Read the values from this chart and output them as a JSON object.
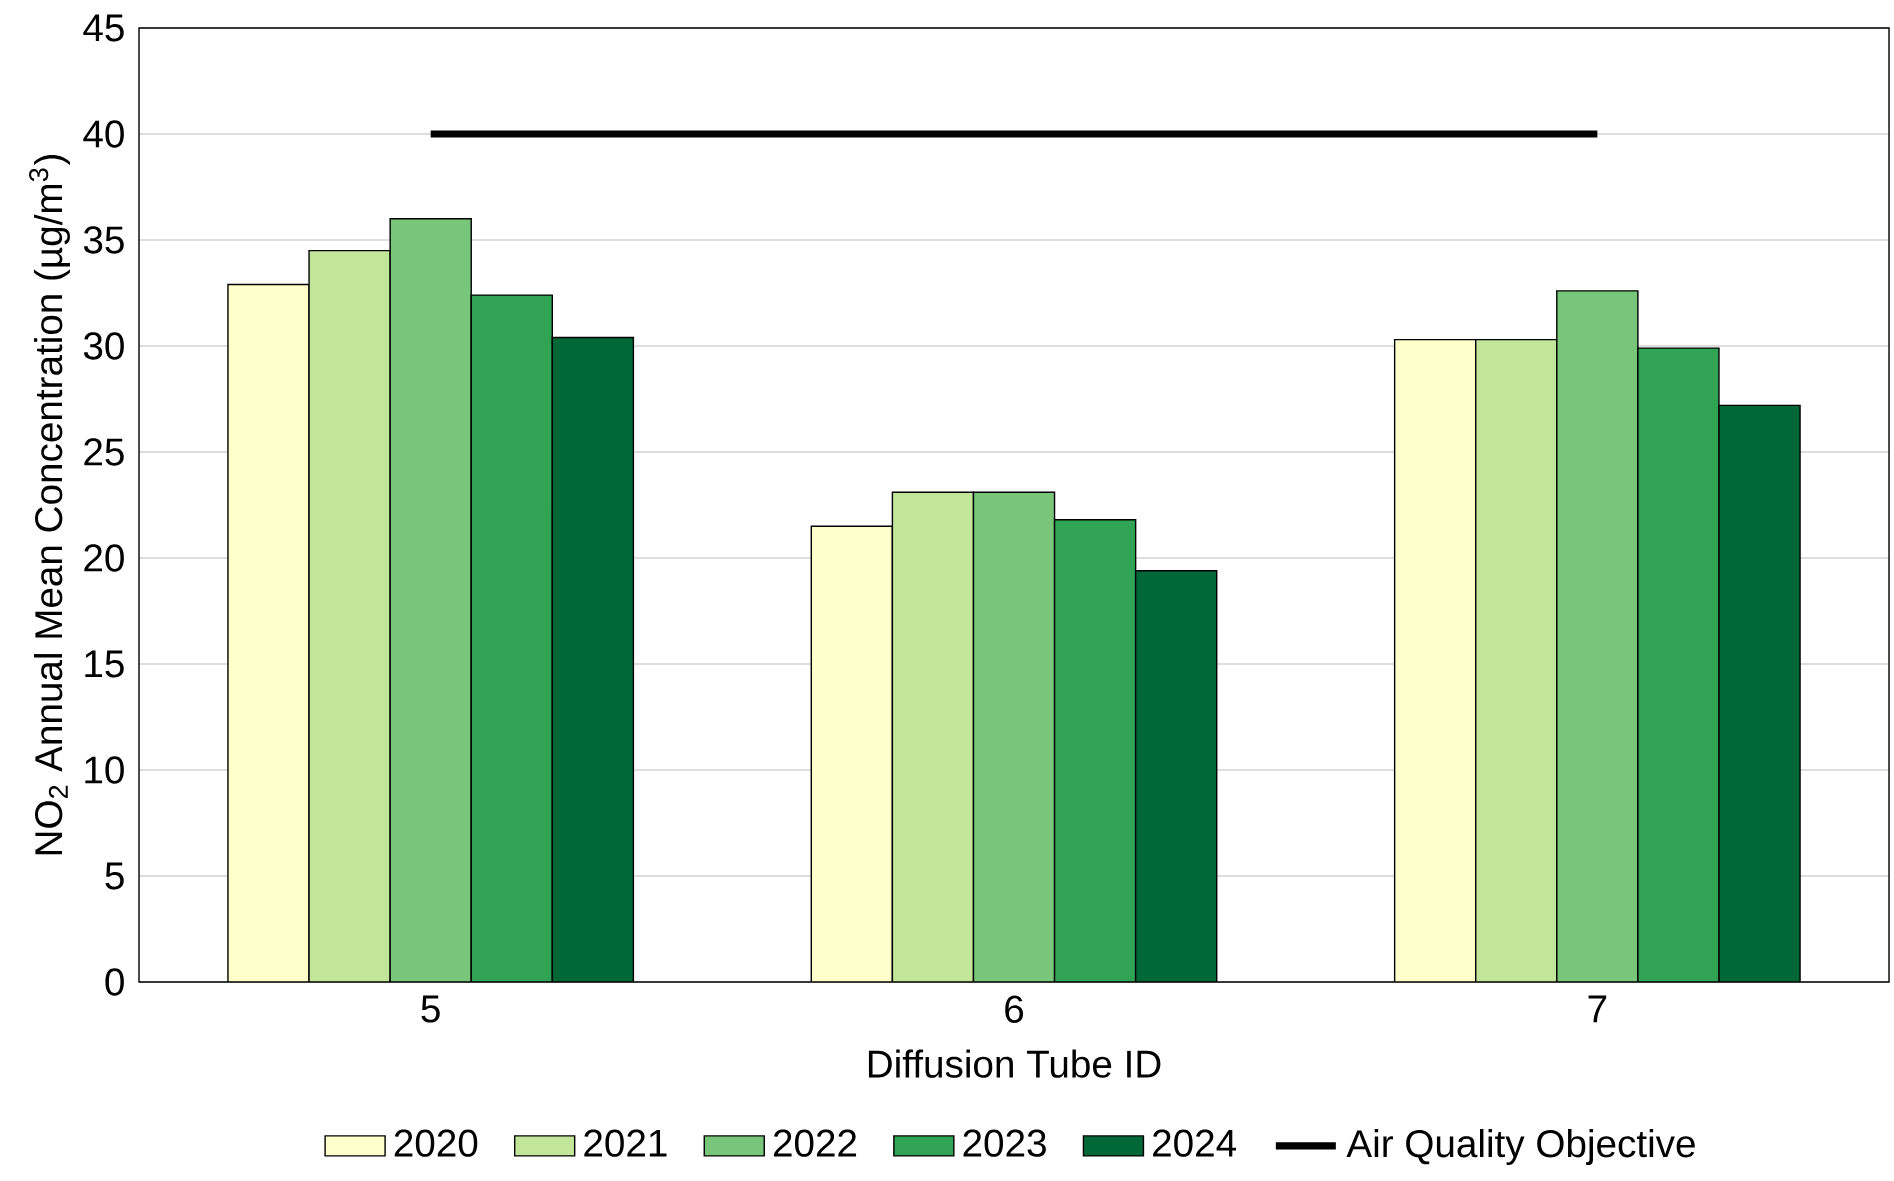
{
  "chart_data": {
    "type": "bar",
    "xlabel": "Diffusion Tube ID",
    "ylabel": "NO$_{2}$ Annual Mean Concentration (µg/m$^{3}$)",
    "categories": [
      "5",
      "6",
      "7"
    ],
    "series": [
      {
        "name": "2020",
        "color": "#ffffcc",
        "values": [
          32.9,
          21.5,
          30.3
        ]
      },
      {
        "name": "2021",
        "color": "#c2e699",
        "values": [
          34.5,
          23.1,
          30.3
        ]
      },
      {
        "name": "2022",
        "color": "#78c679",
        "values": [
          36.0,
          23.1,
          32.6
        ]
      },
      {
        "name": "2023",
        "color": "#31a354",
        "values": [
          32.4,
          21.8,
          29.9
        ]
      },
      {
        "name": "2024",
        "color": "#006837",
        "values": [
          30.4,
          19.4,
          27.2
        ]
      },
      {
        "name": "Air Quality Objective",
        "type": "line",
        "color": "#000000",
        "values": [
          40,
          40,
          40
        ]
      }
    ],
    "ylim": [
      0,
      45
    ],
    "yticks": [
      0,
      5,
      10,
      15,
      20,
      25,
      30,
      35,
      40,
      45
    ],
    "grid": "y",
    "legend": "bottom"
  }
}
